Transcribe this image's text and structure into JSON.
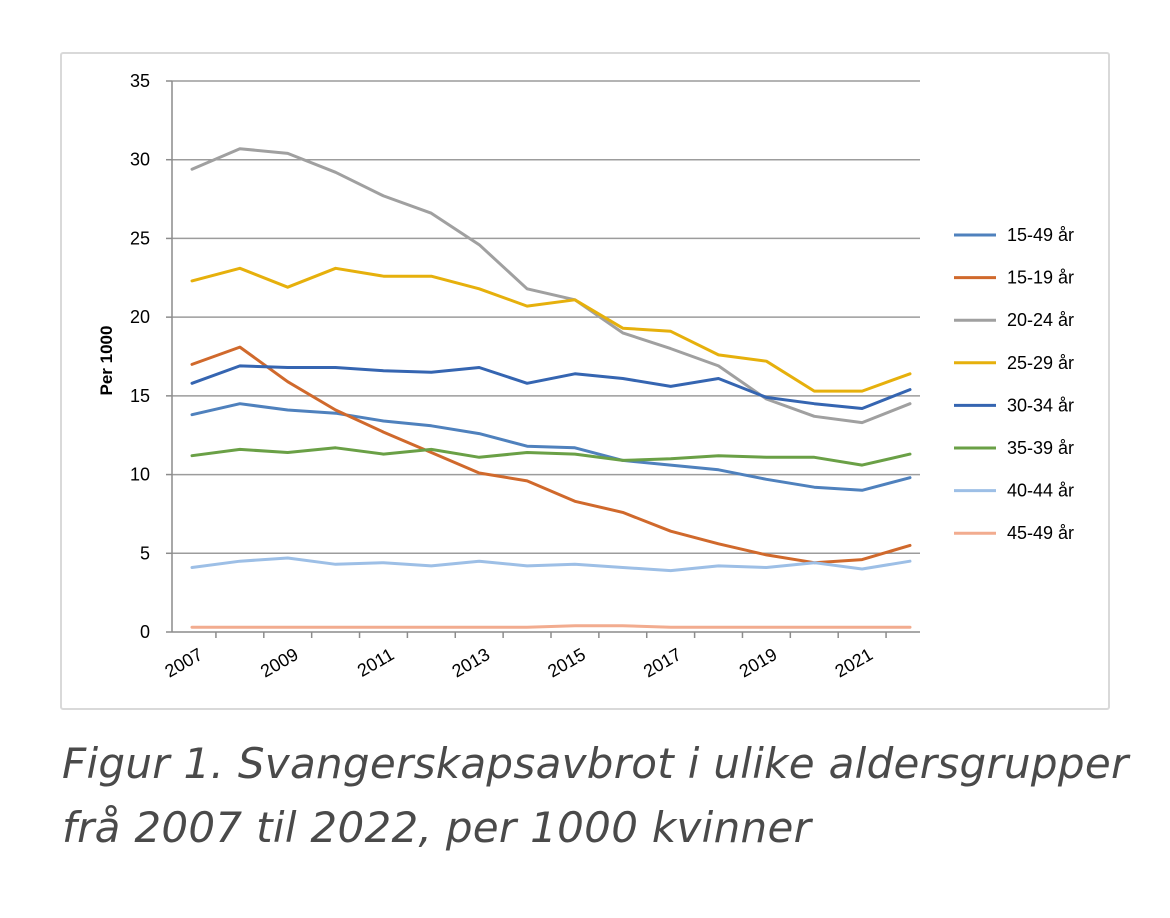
{
  "chart_data": {
    "type": "line",
    "ylabel": "Per 1000",
    "ylim": [
      0,
      35
    ],
    "yticks": [
      0,
      5,
      10,
      15,
      20,
      25,
      30,
      35
    ],
    "xtick_labels": [
      "2007",
      "2009",
      "2011",
      "2013",
      "2015",
      "2017",
      "2019",
      "2021"
    ],
    "x": [
      2007,
      2008,
      2009,
      2010,
      2011,
      2012,
      2013,
      2014,
      2015,
      2016,
      2017,
      2018,
      2019,
      2020,
      2021,
      2022
    ],
    "grid": "horizontal",
    "legend_position": "right",
    "series": [
      {
        "name": "15-49 år",
        "color": "#4f81bd",
        "values": [
          13.8,
          14.5,
          14.1,
          13.9,
          13.4,
          13.1,
          12.6,
          11.8,
          11.7,
          10.9,
          10.6,
          10.3,
          9.7,
          9.2,
          9.0,
          9.8
        ]
      },
      {
        "name": "15-19 år",
        "color": "#d0692c",
        "values": [
          17.0,
          18.1,
          15.9,
          14.1,
          12.7,
          11.4,
          10.1,
          9.6,
          8.3,
          7.6,
          6.4,
          5.6,
          4.9,
          4.4,
          4.6,
          5.5
        ]
      },
      {
        "name": "20-24 år",
        "color": "#a0a0a0",
        "values": [
          29.4,
          30.7,
          30.4,
          29.2,
          27.7,
          26.6,
          24.6,
          21.8,
          21.1,
          19.0,
          18.0,
          16.9,
          14.8,
          13.7,
          13.3,
          14.5
        ]
      },
      {
        "name": "25-29 år",
        "color": "#e6b00c",
        "values": [
          22.3,
          23.1,
          21.9,
          23.1,
          22.6,
          22.6,
          21.8,
          20.7,
          21.1,
          19.3,
          19.1,
          17.6,
          17.2,
          15.3,
          15.3,
          16.4
        ]
      },
      {
        "name": "30-34 år",
        "color": "#3565b1",
        "values": [
          15.8,
          16.9,
          16.8,
          16.8,
          16.6,
          16.5,
          16.8,
          15.8,
          16.4,
          16.1,
          15.6,
          16.1,
          14.9,
          14.5,
          14.2,
          15.4
        ]
      },
      {
        "name": "35-39 år",
        "color": "#6aa046",
        "values": [
          11.2,
          11.6,
          11.4,
          11.7,
          11.3,
          11.6,
          11.1,
          11.4,
          11.3,
          10.9,
          11.0,
          11.2,
          11.1,
          11.1,
          10.6,
          11.3
        ]
      },
      {
        "name": "40-44 år",
        "color": "#9dbfe6",
        "values": [
          4.1,
          4.5,
          4.7,
          4.3,
          4.4,
          4.2,
          4.5,
          4.2,
          4.3,
          4.1,
          3.9,
          4.2,
          4.1,
          4.4,
          4.0,
          4.5
        ]
      },
      {
        "name": "45-49 år",
        "color": "#f2ac8f",
        "values": [
          0.3,
          0.3,
          0.3,
          0.3,
          0.3,
          0.3,
          0.3,
          0.3,
          0.4,
          0.4,
          0.3,
          0.3,
          0.3,
          0.3,
          0.3,
          0.3
        ]
      }
    ]
  },
  "caption": {
    "line1": "Figur 1. Svangerskapsavbrot i ulike aldersgrupper",
    "line2": "frå 2007 til 2022, per 1000 kvinner"
  }
}
